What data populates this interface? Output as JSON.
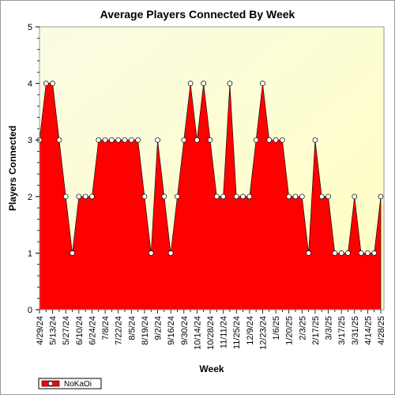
{
  "chart_data": {
    "type": "area",
    "title": "Average Players Connected By Week",
    "xlabel": "Week",
    "ylabel": "Players Connected",
    "ylim": [
      0,
      5
    ],
    "y_ticks": [
      "0",
      "1",
      "2",
      "3",
      "4",
      "5"
    ],
    "x_tick_labels": [
      "4/29/24",
      "5/13/24",
      "5/27/24",
      "6/10/24",
      "6/24/24",
      "7/8/24",
      "7/22/24",
      "8/5/24",
      "8/19/24",
      "9/2/24",
      "9/16/24",
      "9/30/24",
      "10/14/24",
      "10/28/24",
      "11/11/24",
      "11/25/24",
      "12/9/24",
      "12/23/24",
      "1/6/25",
      "1/20/25",
      "2/3/25",
      "2/17/25",
      "3/3/25",
      "3/17/25",
      "3/31/25",
      "4/14/25",
      "4/28/25"
    ],
    "grid": false,
    "legend_position": "bottom-left",
    "series": [
      {
        "name": "NoKaOi",
        "color": "#ff0000",
        "values": [
          3,
          4,
          4,
          3,
          2,
          1,
          2,
          2,
          2,
          3,
          3,
          3,
          3,
          3,
          3,
          3,
          2,
          1,
          3,
          2,
          1,
          2,
          3,
          4,
          3,
          4,
          3,
          2,
          2,
          4,
          2,
          2,
          2,
          3,
          4,
          3,
          3,
          3,
          2,
          2,
          2,
          1,
          3,
          2,
          2,
          1,
          1,
          1,
          2,
          1,
          1,
          1,
          2
        ]
      }
    ]
  }
}
